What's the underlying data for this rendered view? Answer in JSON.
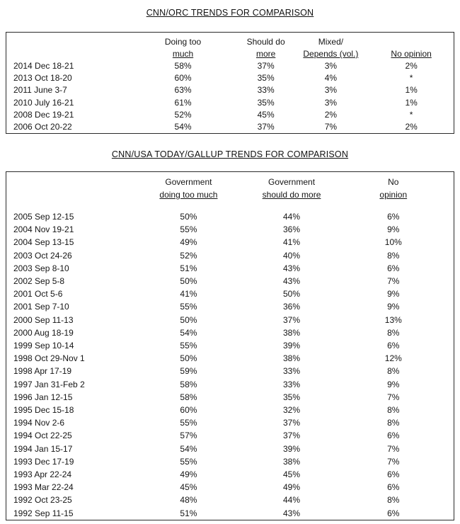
{
  "page": {
    "background": "#ffffff",
    "text_color": "#1c1c1c",
    "border_color": "#2b2b2b"
  },
  "table1": {
    "title": "CNN/ORC TRENDS FOR COMPARISON",
    "columns": [
      {
        "line1": "",
        "line2": ""
      },
      {
        "line1": "Doing too",
        "line2": "much"
      },
      {
        "line1": "Should do",
        "line2": "more"
      },
      {
        "line1": "Mixed/",
        "line2": "Depends (vol.)"
      },
      {
        "line1": "",
        "line2": "No opinion"
      }
    ],
    "rows": [
      [
        "2014 Dec 18-21",
        "58%",
        "37%",
        "3%",
        "2%"
      ],
      [
        "2013 Oct 18-20",
        "60%",
        "35%",
        "4%",
        "*"
      ],
      [
        "2011 June 3-7",
        "63%",
        "33%",
        "3%",
        "1%"
      ],
      [
        "2010 July 16-21",
        "61%",
        "35%",
        "3%",
        "1%"
      ],
      [
        "2008 Dec 19-21",
        "52%",
        "45%",
        "2%",
        "*"
      ],
      [
        "2006 Oct 20-22",
        "54%",
        "37%",
        "7%",
        "2%"
      ]
    ]
  },
  "table2": {
    "title": "CNN/USA TODAY/GALLUP TRENDS FOR COMPARISON",
    "columns": [
      {
        "line1": "",
        "line2": ""
      },
      {
        "line1": "Government",
        "line2": "doing too much"
      },
      {
        "line1": "Government",
        "line2": "should do more"
      },
      {
        "line1": "No",
        "line2": "opinion"
      }
    ],
    "rows": [
      [
        "2005 Sep 12-15",
        "50%",
        "44%",
        "6%"
      ],
      [
        "2004 Nov 19-21",
        "55%",
        "36%",
        "9%"
      ],
      [
        "2004 Sep 13-15",
        "49%",
        "41%",
        "10%"
      ],
      [
        "2003 Oct 24-26",
        "52%",
        "40%",
        "8%"
      ],
      [
        "2003 Sep 8-10",
        "51%",
        "43%",
        "6%"
      ],
      [
        "2002 Sep 5-8",
        "50%",
        "43%",
        "7%"
      ],
      [
        "2001 Oct 5-6",
        "41%",
        "50%",
        "9%"
      ],
      [
        "2001 Sep 7-10",
        "55%",
        "36%",
        "9%"
      ],
      [
        "2000 Sep 11-13",
        "50%",
        "37%",
        "13%"
      ],
      [
        "2000 Aug 18-19",
        "54%",
        "38%",
        "8%"
      ],
      [
        "1999 Sep 10-14",
        "55%",
        "39%",
        "6%"
      ],
      [
        "1998 Oct 29-Nov 1",
        "50%",
        "38%",
        "12%"
      ],
      [
        "1998 Apr 17-19",
        "59%",
        "33%",
        "8%"
      ],
      [
        "1997 Jan 31-Feb 2",
        "58%",
        "33%",
        "9%"
      ],
      [
        "1996 Jan 12-15",
        "58%",
        "35%",
        "7%"
      ],
      [
        "1995 Dec 15-18",
        "60%",
        "32%",
        "8%"
      ],
      [
        "1994 Nov 2-6",
        "55%",
        "37%",
        "8%"
      ],
      [
        "1994 Oct 22-25",
        "57%",
        "37%",
        "6%"
      ],
      [
        "1994 Jan 15-17",
        "54%",
        "39%",
        "7%"
      ],
      [
        "1993 Dec 17-19",
        "55%",
        "38%",
        "7%"
      ],
      [
        "1993 Apr 22-24",
        "49%",
        "45%",
        "6%"
      ],
      [
        "1993 Mar 22-24",
        "45%",
        "49%",
        "6%"
      ],
      [
        "1992 Oct 23-25",
        "48%",
        "44%",
        "8%"
      ],
      [
        "1992 Sep 11-15",
        "51%",
        "43%",
        "6%"
      ]
    ]
  }
}
